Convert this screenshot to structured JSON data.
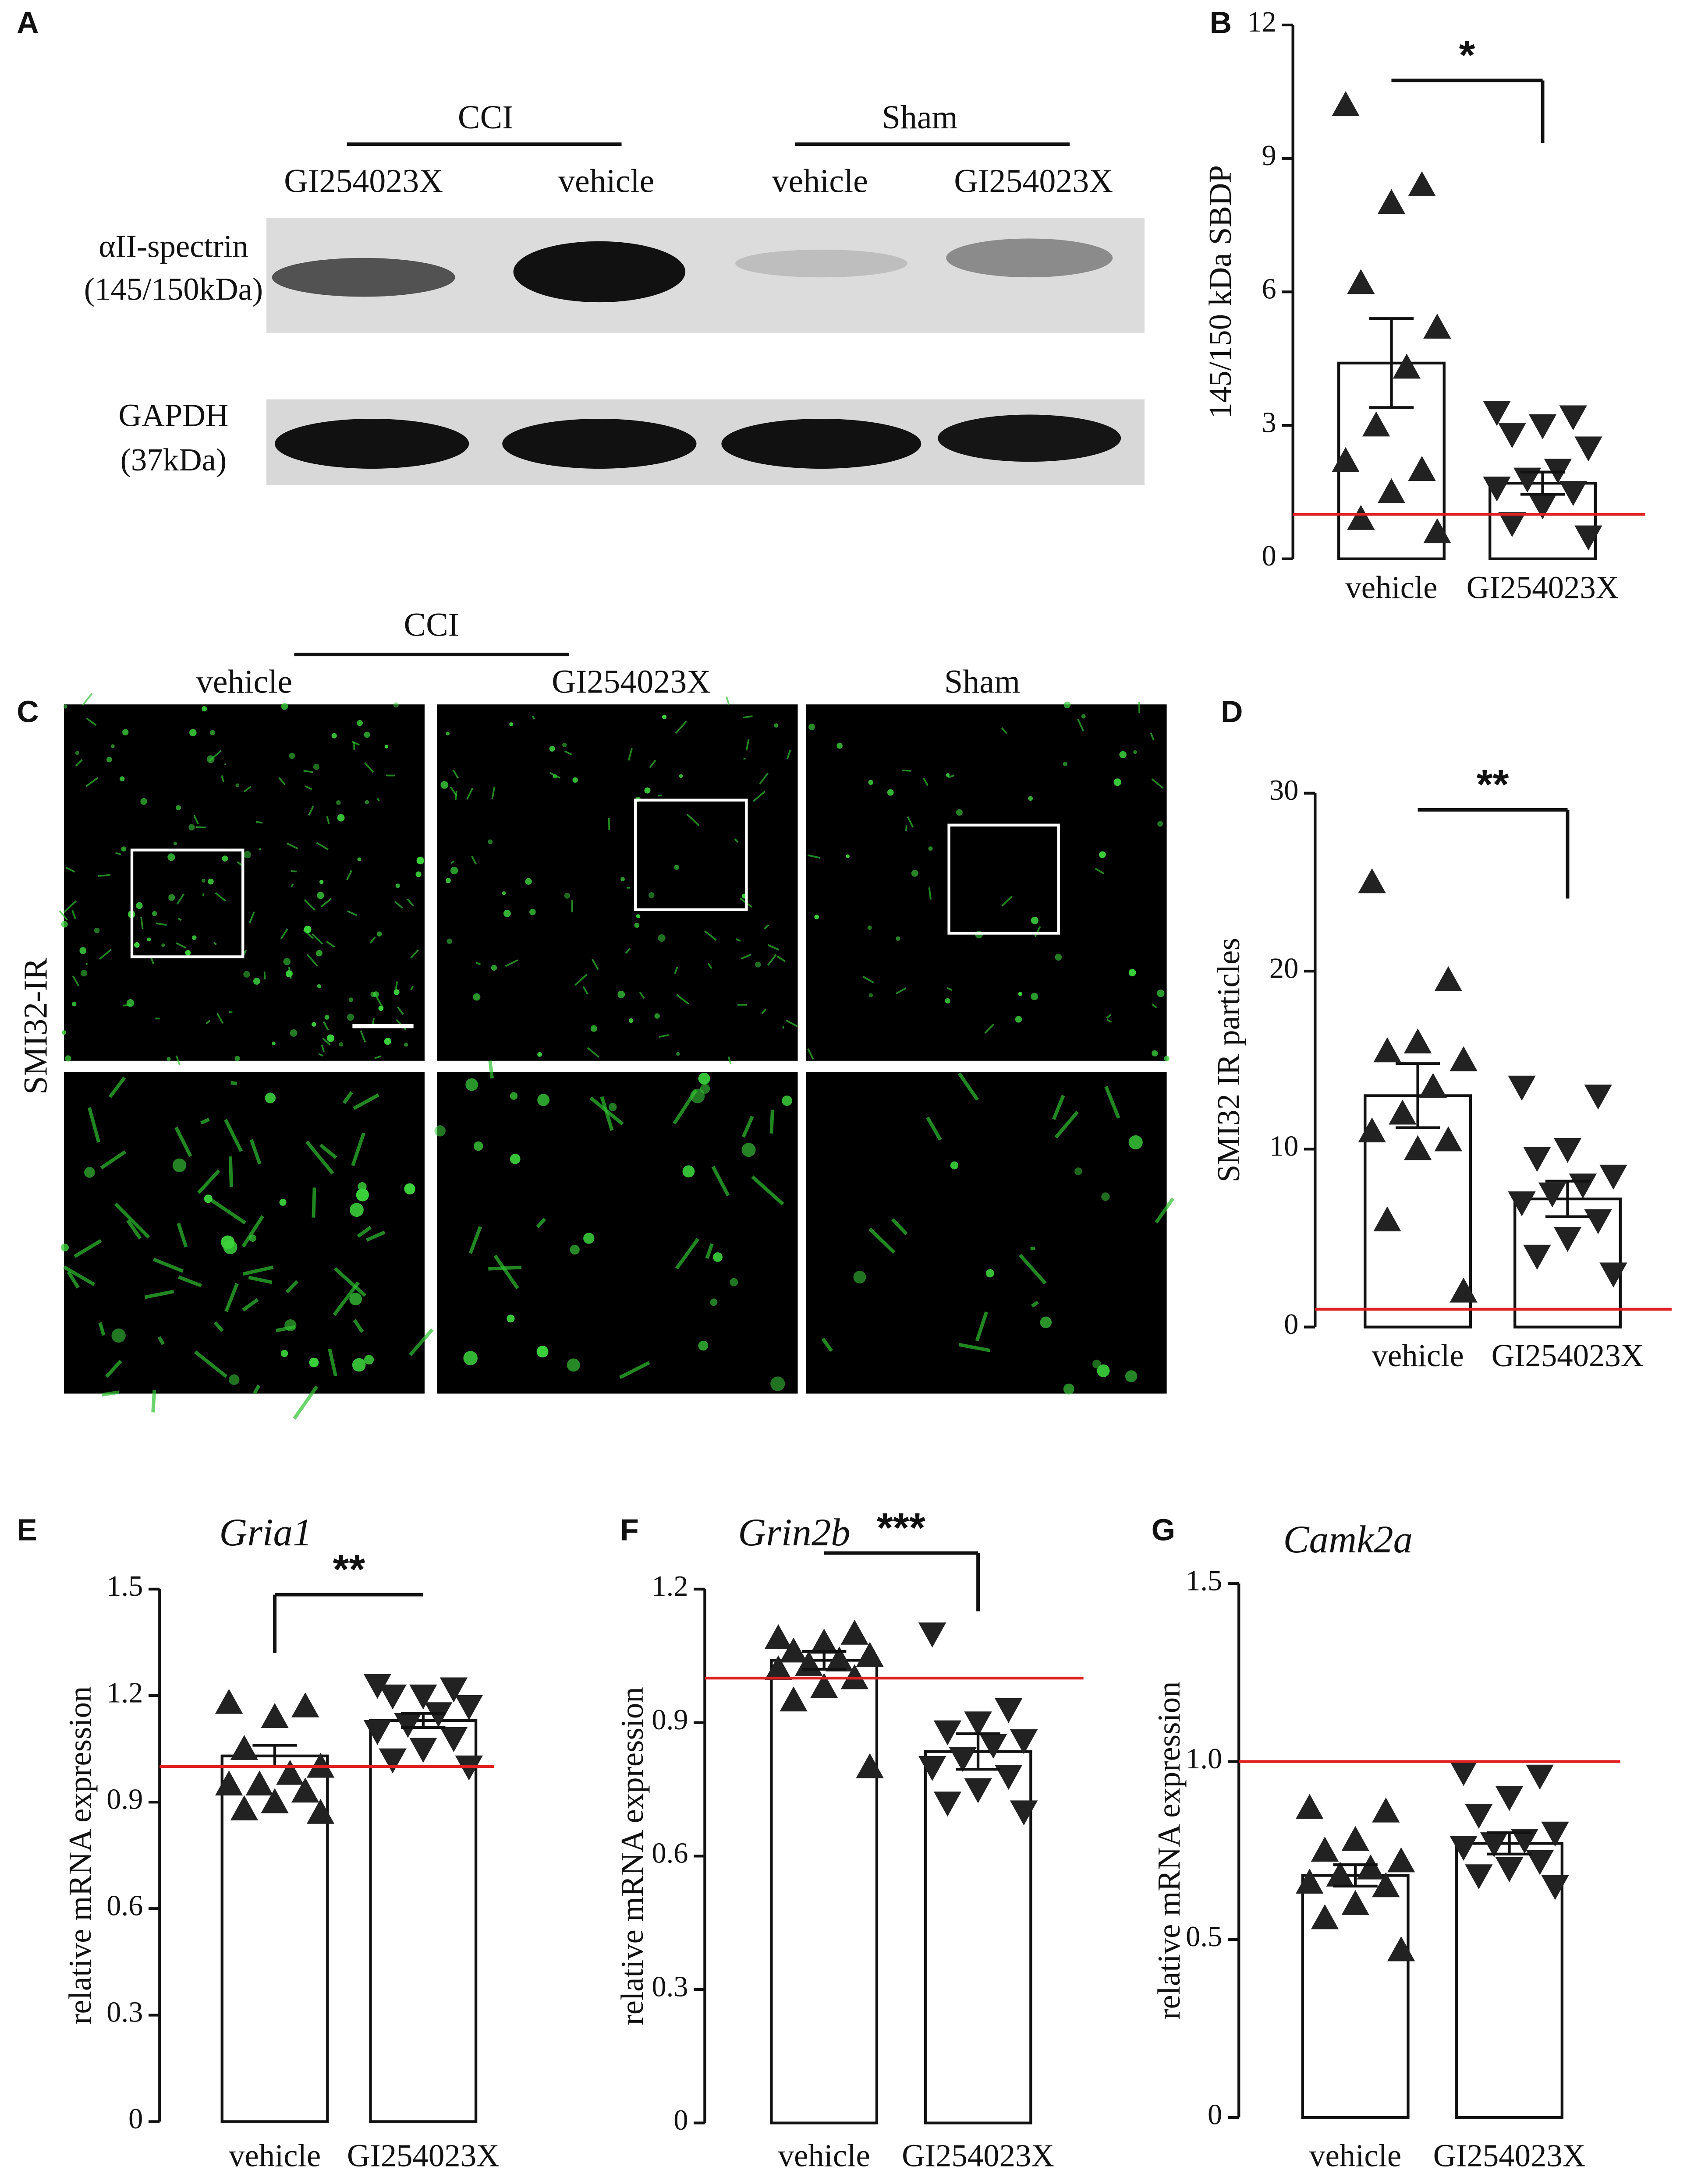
{
  "blot": {
    "panel": "A",
    "groups": [
      "CCI",
      "Sham"
    ],
    "lanes": [
      "GI254023X",
      "vehicle",
      "vehicle",
      "GI254023X"
    ],
    "rows": [
      [
        "αII-spectrin",
        "(145/150kDa)"
      ],
      [
        "GAPDH",
        "(37kDa)"
      ]
    ]
  },
  "micrographs": {
    "panel": "C",
    "group": "CCI",
    "columns": [
      "vehicle",
      "GI254023X",
      "Sham"
    ],
    "row_label": "SMI32-IR"
  },
  "chart_data": [
    {
      "type": "bar",
      "panel": "B",
      "ylabel": "145/150 kDa SBDP",
      "categories": [
        "vehicle",
        "GI254023X"
      ],
      "values": [
        4.4,
        1.7
      ],
      "errors": [
        1.0,
        0.25
      ],
      "markers": [
        "triangle-up",
        "triangle-down"
      ],
      "points": [
        [
          10.2,
          8.4,
          8.0,
          6.2,
          5.2,
          4.3,
          3.0,
          2.2,
          2.0,
          1.5,
          0.9,
          0.6
        ],
        [
          3.3,
          3.2,
          3.0,
          2.8,
          2.5,
          2.0,
          1.8,
          1.6,
          1.5,
          1.2,
          0.8,
          0.5
        ]
      ],
      "reference": 1,
      "reference_color": "#e02020",
      "significance": "*",
      "ylim": [
        0,
        12
      ],
      "yticks": [
        0,
        3,
        6,
        9,
        12
      ]
    },
    {
      "type": "bar",
      "panel": "D",
      "ylabel": "SMI32 IR particles",
      "categories": [
        "vehicle",
        "GI254023X"
      ],
      "values": [
        13.0,
        7.2
      ],
      "errors": [
        1.8,
        1.0
      ],
      "markers": [
        "triangle-up",
        "triangle-down"
      ],
      "points": [
        [
          25,
          19.5,
          16,
          15.5,
          15,
          13.5,
          12,
          11,
          10.5,
          10,
          6,
          2
        ],
        [
          13.5,
          13,
          10,
          9.5,
          8.5,
          8,
          7.5,
          7,
          6,
          5,
          4,
          3
        ]
      ],
      "reference": 1,
      "reference_color": "#e02020",
      "significance": "**",
      "ylim": [
        0,
        30
      ],
      "yticks": [
        0,
        10,
        20,
        30
      ]
    },
    {
      "type": "bar",
      "panel": "E",
      "title": "Gria1",
      "ylabel": "relative mRNA expression",
      "categories": [
        "vehicle",
        "GI254023X"
      ],
      "values": [
        1.03,
        1.13
      ],
      "errors": [
        0.03,
        0.02
      ],
      "markers": [
        "triangle-up",
        "triangle-down"
      ],
      "points": [
        [
          1.18,
          1.17,
          1.14,
          1.05,
          1.0,
          0.98,
          0.95,
          0.95,
          0.93,
          0.9,
          0.88,
          0.87
        ],
        [
          1.23,
          1.22,
          1.2,
          1.2,
          1.17,
          1.15,
          1.12,
          1.1,
          1.08,
          1.05,
          1.02,
          1.0
        ]
      ],
      "reference": 1,
      "reference_color": "#e02020",
      "significance": "**",
      "ylim": [
        0,
        1.5
      ],
      "yticks": [
        0,
        0.3,
        0.6,
        0.9,
        1.2,
        1.5
      ]
    },
    {
      "type": "bar",
      "panel": "F",
      "title": "Grin2b",
      "ylabel": "relative mRNA expression",
      "categories": [
        "vehicle",
        "GI254023X"
      ],
      "values": [
        1.04,
        0.835
      ],
      "errors": [
        0.02,
        0.04
      ],
      "markers": [
        "triangle-up",
        "triangle-down"
      ],
      "points": [
        [
          1.09,
          1.1,
          1.08,
          1.06,
          1.05,
          1.04,
          1.03,
          1.02,
          1.0,
          0.98,
          0.95,
          0.8
        ],
        [
          1.1,
          0.93,
          0.9,
          0.88,
          0.86,
          0.85,
          0.82,
          0.8,
          0.78,
          0.75,
          0.72,
          0.7
        ]
      ],
      "reference": 1,
      "reference_color": "#e02020",
      "significance": "***",
      "ylim": [
        0,
        1.2
      ],
      "yticks": [
        0,
        0.3,
        0.6,
        0.9,
        1.2
      ]
    },
    {
      "type": "bar",
      "panel": "G",
      "title": "Camk2a",
      "ylabel": "relative mRNA expression",
      "categories": [
        "vehicle",
        "GI254023X"
      ],
      "values": [
        0.68,
        0.77
      ],
      "errors": [
        0.03,
        0.03
      ],
      "markers": [
        "triangle-up",
        "triangle-down"
      ],
      "points": [
        [
          0.87,
          0.86,
          0.78,
          0.75,
          0.72,
          0.7,
          0.68,
          0.66,
          0.65,
          0.6,
          0.56,
          0.47
        ],
        [
          0.97,
          0.96,
          0.9,
          0.85,
          0.8,
          0.78,
          0.77,
          0.76,
          0.72,
          0.7,
          0.68,
          0.65
        ]
      ],
      "reference": 1,
      "reference_color": "#e02020",
      "ylim": [
        0,
        1.5
      ],
      "yticks": [
        0,
        0.5,
        {
          "value": 1,
          "label": "1.0"
        },
        1.5
      ]
    }
  ]
}
